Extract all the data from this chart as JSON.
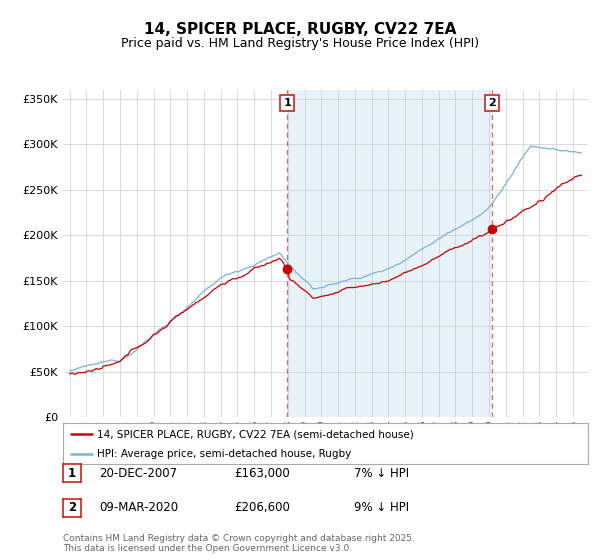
{
  "title": "14, SPICER PLACE, RUGBY, CV22 7EA",
  "subtitle": "Price paid vs. HM Land Registry's House Price Index (HPI)",
  "ylim": [
    0,
    360000
  ],
  "yticks": [
    0,
    50000,
    100000,
    150000,
    200000,
    250000,
    300000,
    350000
  ],
  "sale1": {
    "date_num": 2007.97,
    "price": 163000,
    "label": "1",
    "date_str": "20-DEC-2007",
    "pct": "7% ↓ HPI"
  },
  "sale2": {
    "date_num": 2020.19,
    "price": 206600,
    "label": "2",
    "date_str": "09-MAR-2020",
    "pct": "9% ↓ HPI"
  },
  "legend_line1": "14, SPICER PLACE, RUGBY, CV22 7EA (semi-detached house)",
  "legend_line2": "HPI: Average price, semi-detached house, Rugby",
  "footer": "Contains HM Land Registry data © Crown copyright and database right 2025.\nThis data is licensed under the Open Government Licence v3.0.",
  "line_color_red": "#cc0000",
  "line_color_blue": "#7ab4d8",
  "fill_color_blue": "#daeaf5",
  "background_color": "#ffffff",
  "grid_color": "#cccccc",
  "dashed_color": "#dd6666",
  "title_fontsize": 11,
  "subtitle_fontsize": 9,
  "tick_fontsize": 8
}
